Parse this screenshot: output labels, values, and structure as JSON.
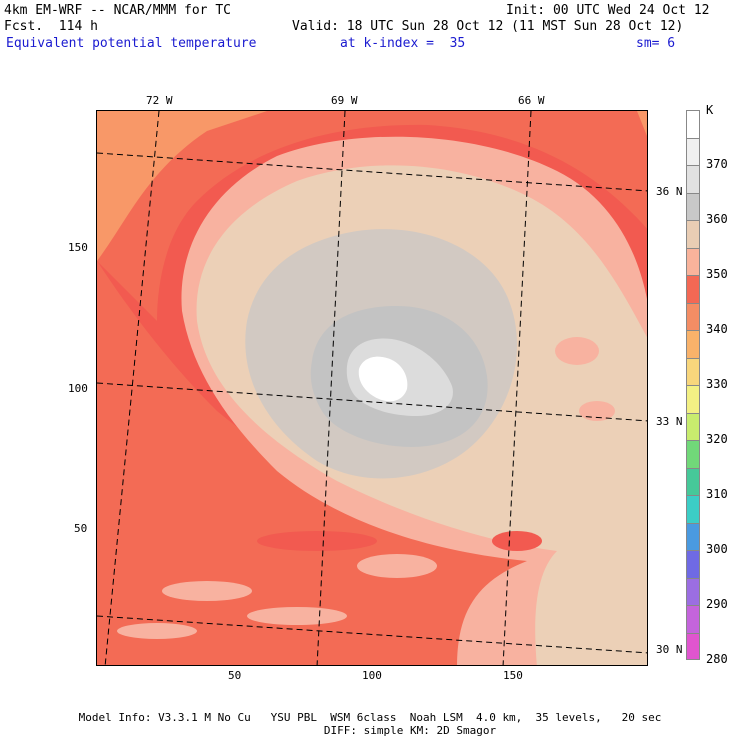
{
  "header": {
    "model": "4km EM-WRF -- NCAR/MMM for TC",
    "forecast": "Fcst.  114 h",
    "init": "Init: 00 UTC Wed 24 Oct 12",
    "valid": "Valid: 18 UTC Sun 28 Oct 12 (11 MST Sun 28 Oct 12)",
    "field": "Equivalent potential temperature",
    "level": "at k-index =  35",
    "smooth": "sm= 6"
  },
  "axes": {
    "x_ticks": [
      "50",
      "100",
      "150"
    ],
    "y_ticks": [
      "150",
      "100",
      "50"
    ],
    "lon_labels": [
      "72 W",
      "69 W",
      "66 W"
    ],
    "lat_labels": [
      "36 N",
      "33 N",
      "30 N"
    ]
  },
  "colorbar": {
    "unit": "K",
    "labels": [
      "370",
      "360",
      "350",
      "340",
      "330",
      "320",
      "310",
      "300",
      "290",
      "280"
    ],
    "colors": [
      "#ffffff",
      "#f0f0f0",
      "#e1e1e1",
      "#c8c8c8",
      "#e9cdb4",
      "#f9b39b",
      "#f36854",
      "#f48d64",
      "#f9b26a",
      "#f8d67c",
      "#f3f084",
      "#c8ec6e",
      "#71d879",
      "#46c899",
      "#3ccdc6",
      "#4a9ae0",
      "#6f6ae4",
      "#9b6ee2",
      "#c464dc",
      "#e055cf"
    ]
  },
  "colors": {
    "c330": "#f89868",
    "c335": "#f36b55",
    "c340": "#f25a50",
    "c345": "#f8b2a0",
    "c350": "#ecd0b7",
    "c355": "#d2c9c2",
    "c360": "#c3c3c3",
    "c365": "#dcdcdc",
    "c370": "#ffffff",
    "c325": "#f9c47c"
  },
  "footer": {
    "line1": "Model Info: V3.3.1 M No Cu   YSU PBL  WSM 6class  Noah LSM  4.0 km,  35 levels,   20 sec",
    "line2": "DIFF: simple KM: 2D Smagor"
  }
}
